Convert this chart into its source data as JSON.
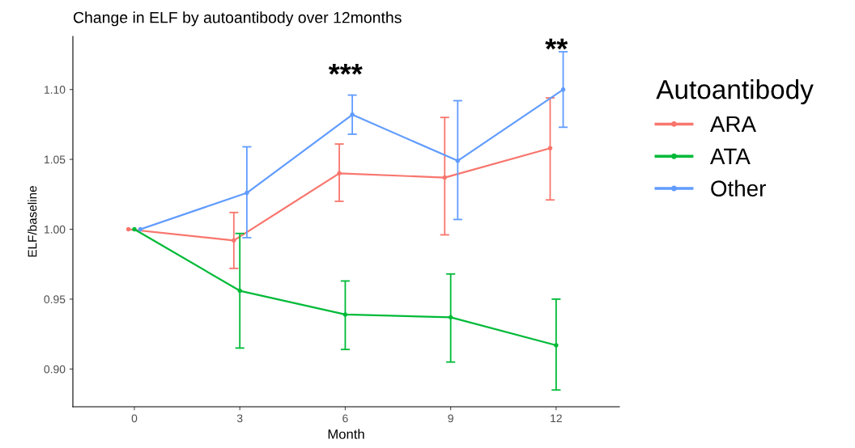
{
  "chart_data": {
    "type": "line",
    "title": "Change in ELF by autoantibody over 12months",
    "xlabel": "Month",
    "ylabel": "ELF/baseline",
    "legend_title": "Autoantibody",
    "xlim": [
      -1.75,
      13.8
    ],
    "xticks": [
      0,
      3,
      6,
      9,
      12
    ],
    "ylim": [
      0.873,
      1.138
    ],
    "yticks": [
      {
        "value": 0.9,
        "label": "0.90"
      },
      {
        "value": 0.95,
        "label": "0.95"
      },
      {
        "value": 1.0,
        "label": "1.00"
      },
      {
        "value": 1.05,
        "label": "1.05"
      },
      {
        "value": 1.1,
        "label": "1.10"
      }
    ],
    "grid": false,
    "legend": "right",
    "marker": "circle",
    "line_style": "solid",
    "series": [
      {
        "name": "ARA",
        "color": "#f8766d",
        "x": [
          -0.17,
          2.83,
          5.83,
          8.83,
          11.83
        ],
        "values": [
          1.0,
          0.992,
          1.04,
          1.037,
          1.058
        ],
        "errors": [
          null,
          [
            0.972,
            1.012
          ],
          [
            1.02,
            1.061
          ],
          [
            0.996,
            1.08
          ],
          [
            1.021,
            1.094
          ]
        ]
      },
      {
        "name": "ATA",
        "color": "#00ba38",
        "x": [
          0,
          3,
          6,
          9,
          12
        ],
        "values": [
          1.0,
          0.956,
          0.939,
          0.937,
          0.917
        ],
        "errors": [
          null,
          [
            0.915,
            0.997
          ],
          [
            0.914,
            0.963
          ],
          [
            0.905,
            0.968
          ],
          [
            0.885,
            0.95
          ]
        ]
      },
      {
        "name": "Other",
        "color": "#619cff",
        "x": [
          0.17,
          3.2,
          6.2,
          9.2,
          12.2
        ],
        "values": [
          1.0,
          1.026,
          1.082,
          1.049,
          1.1
        ],
        "errors": [
          null,
          [
            0.994,
            1.059
          ],
          [
            1.068,
            1.096
          ],
          [
            1.007,
            1.092
          ],
          [
            1.073,
            1.127
          ]
        ]
      }
    ],
    "annotations": [
      {
        "text": "***",
        "x": 6.2,
        "y": 1.082
      },
      {
        "text": "**",
        "x": 12.2,
        "y": 1.1
      }
    ]
  }
}
